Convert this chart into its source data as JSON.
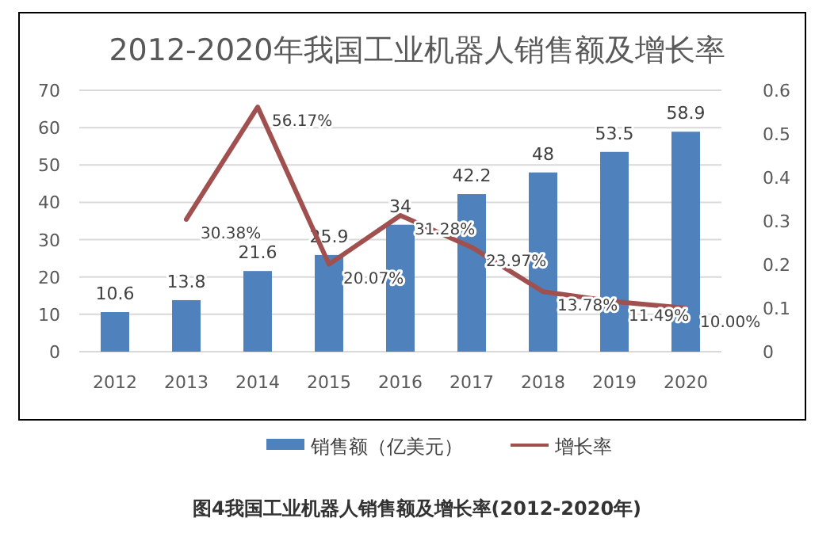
{
  "chart_data": {
    "type": "bar",
    "title": "2012-2020年我国工业机器人销售额及增长率",
    "categories": [
      "2012",
      "2013",
      "2014",
      "2015",
      "2016",
      "2017",
      "2018",
      "2019",
      "2020"
    ],
    "series": [
      {
        "name": "销售额（亿美元）",
        "color": "#4f81bd",
        "values": [
          10.6,
          13.8,
          21.6,
          25.9,
          34,
          42.2,
          48,
          53.5,
          58.9
        ],
        "value_labels": [
          "10.6",
          "13.8",
          "21.6",
          "25.9",
          "34",
          "42.2",
          "48",
          "53.5",
          "58.9"
        ]
      },
      {
        "name": "增长率",
        "type": "line",
        "axis": "y2",
        "color": "#a0504e",
        "values": [
          null,
          0.3038,
          0.5617,
          0.2007,
          0.3128,
          0.2397,
          0.1378,
          0.1149,
          0.1
        ],
        "value_labels": [
          null,
          "30.38%",
          "56.17%",
          "20.07%",
          "31.28%",
          "23.97%",
          "13.78%",
          "11.49%",
          "10.00%"
        ]
      }
    ],
    "ylim": [
      0,
      70
    ],
    "yticks": [
      0,
      10,
      20,
      30,
      40,
      50,
      60,
      70
    ],
    "y2lim": [
      0,
      0.6
    ],
    "y2ticks": [
      0,
      0.1,
      0.2,
      0.3,
      0.4,
      0.5,
      0.6
    ],
    "grid": "y",
    "legend": "bottom",
    "marker": "none",
    "line_style": "solid",
    "annotations": [
      "图4我国工业机器人销售额及增长率(2012-2020年)"
    ]
  }
}
